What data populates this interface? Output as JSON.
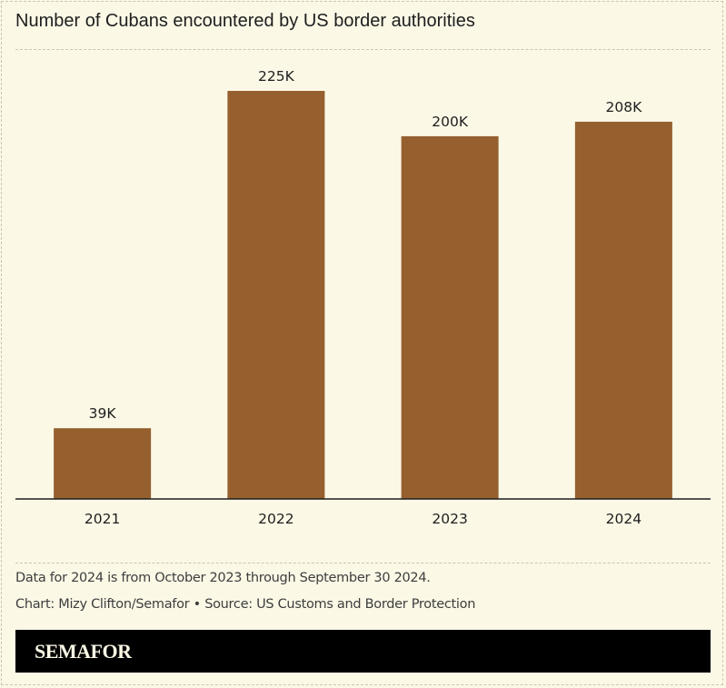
{
  "chart_data": {
    "type": "bar",
    "title": "Number of Cubans encountered by US border authorities",
    "categories": [
      "2021",
      "2022",
      "2023",
      "2024"
    ],
    "values": [
      39,
      225,
      200,
      208
    ],
    "value_unit": "thousands",
    "data_labels": [
      "39K",
      "225K",
      "200K",
      "208K"
    ],
    "xlabel": "",
    "ylabel": "",
    "ylim": [
      0,
      225
    ],
    "grid": false,
    "legend": "none",
    "bar_color": "#955F2E"
  },
  "footer": {
    "note": "Data for 2024 is from October 2023 through September 30 2024.",
    "credit": "Chart: Mizy Clifton/Semafor • Source: US Customs and Border Protection",
    "brand": "SEMAFOR"
  },
  "colors": {
    "background": "#FBF8E6",
    "bar": "#955F2E",
    "brand_band": "#000000"
  }
}
